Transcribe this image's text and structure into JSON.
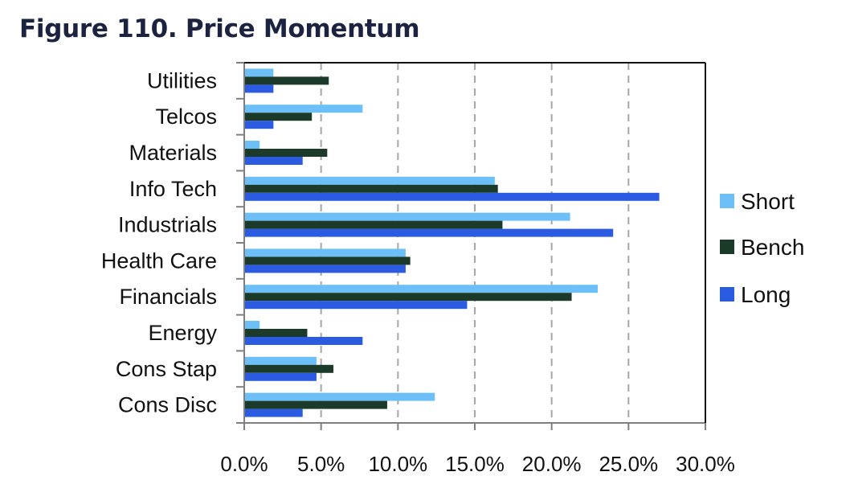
{
  "title": "Figure 110. Price Momentum",
  "chart_data": {
    "type": "bar",
    "orientation": "horizontal",
    "categories": [
      "Utilities",
      "Telcos",
      "Materials",
      "Info Tech",
      "Industrials",
      "Health Care",
      "Financials",
      "Energy",
      "Cons Stap",
      "Cons Disc"
    ],
    "series": [
      {
        "name": "Short",
        "color": "#6dc0f7",
        "values": [
          1.9,
          7.7,
          1.0,
          16.3,
          21.2,
          10.5,
          23.0,
          1.0,
          4.7,
          12.4
        ]
      },
      {
        "name": "Bench",
        "color": "#1c3a2a",
        "values": [
          5.5,
          4.4,
          5.4,
          16.5,
          16.8,
          10.8,
          21.3,
          4.1,
          5.8,
          9.3
        ]
      },
      {
        "name": "Long",
        "color": "#2a5be0",
        "values": [
          1.9,
          1.9,
          3.8,
          27.0,
          24.0,
          10.5,
          14.5,
          7.7,
          4.7,
          3.8
        ]
      }
    ],
    "xlim": [
      0,
      30
    ],
    "xticks": [
      0,
      5,
      10,
      15,
      20,
      25,
      30
    ],
    "xtick_labels": [
      "0.0%",
      "5.0%",
      "10.0%",
      "15.0%",
      "20.0%",
      "25.0%",
      "30.0%"
    ],
    "xlabel": "",
    "ylabel": "",
    "grid": "vertical dashed",
    "legend": "right"
  }
}
